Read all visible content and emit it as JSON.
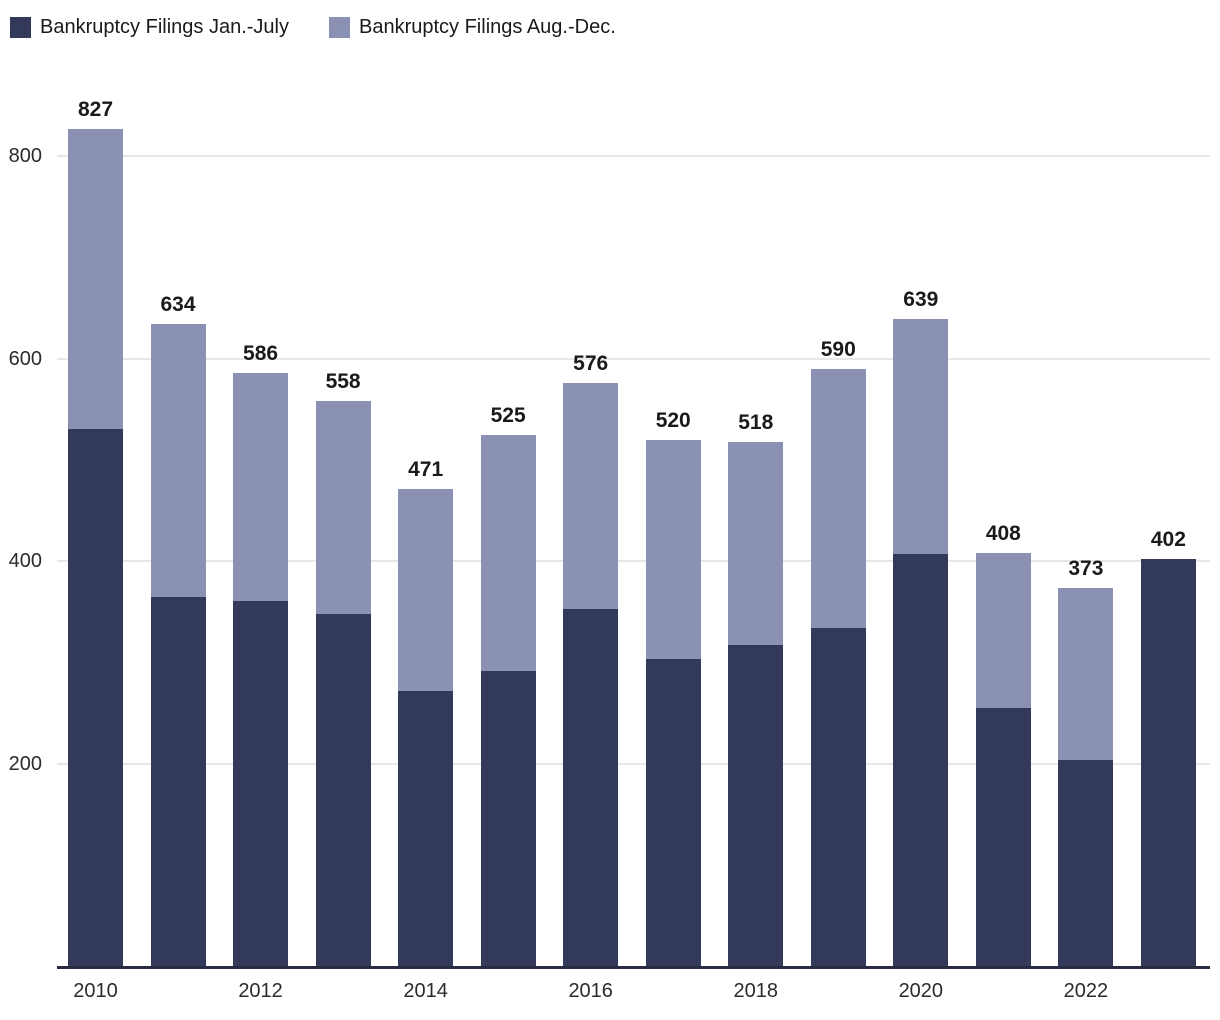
{
  "legend": {
    "items": [
      {
        "label": "Bankruptcy Filings Jan.-July",
        "color": "#333a59"
      },
      {
        "label": "Bankruptcy Filings Aug.-Dec.",
        "color": "#8b91b5"
      }
    ]
  },
  "colors": {
    "series_dark": "#333a59",
    "series_light": "#8b91b5",
    "gridline": "#e7e7e7",
    "axis_line": "#272c42",
    "value_label": "#1a1a1a",
    "tick_label": "#2b2b2b"
  },
  "chart_data": {
    "type": "bar",
    "stacked": true,
    "categories": [
      "2010",
      "2011",
      "2012",
      "2013",
      "2014",
      "2015",
      "2016",
      "2017",
      "2018",
      "2019",
      "2020",
      "2021",
      "2022",
      "2023"
    ],
    "series": [
      {
        "name": "Bankruptcy Filings Jan.-July",
        "color": "#333a59",
        "values": [
          530,
          364,
          361,
          348,
          272,
          291,
          353,
          303,
          317,
          334,
          407,
          255,
          204,
          402
        ]
      },
      {
        "name": "Bankruptcy Filings Aug.-Dec.",
        "color": "#8b91b5",
        "values": [
          297,
          270,
          225,
          210,
          199,
          234,
          223,
          217,
          201,
          256,
          232,
          153,
          169,
          0
        ]
      }
    ],
    "totals": [
      827,
      634,
      586,
      558,
      471,
      525,
      576,
      520,
      518,
      590,
      639,
      408,
      373,
      402
    ],
    "x_tick_labels": [
      "2010",
      "",
      "2012",
      "",
      "2014",
      "",
      "2016",
      "",
      "2018",
      "",
      "2020",
      "",
      "2022",
      ""
    ],
    "y_ticks": [
      200,
      400,
      600,
      800
    ],
    "ylim": [
      0,
      860
    ],
    "grid": "horizontal",
    "legend_position": "top-left"
  }
}
